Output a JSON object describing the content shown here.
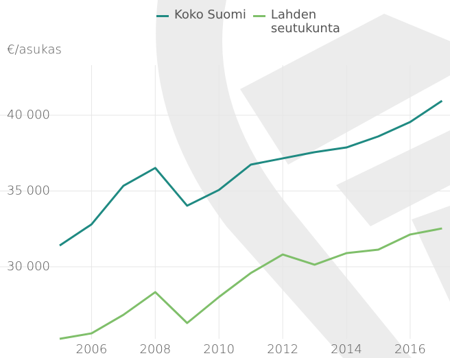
{
  "chart_data": {
    "type": "line",
    "y_axis_label": "€/asukas",
    "x": [
      2005,
      2006,
      2007,
      2008,
      2009,
      2010,
      2011,
      2012,
      2013,
      2014,
      2015,
      2016,
      2017
    ],
    "series": [
      {
        "name": "Koko Suomi",
        "color": "#1f8a82",
        "values": [
          31400,
          32800,
          35340,
          36520,
          34030,
          35070,
          36740,
          37150,
          37560,
          37870,
          38600,
          39550,
          40950
        ]
      },
      {
        "name": "Lahden seutukunta",
        "color": "#7fbf6a",
        "values": [
          25250,
          25610,
          26830,
          28330,
          26290,
          28010,
          29590,
          30810,
          30140,
          30900,
          31130,
          32130,
          32530
        ]
      }
    ],
    "xlim": [
      2005,
      2017.25
    ],
    "xticks": [
      2006,
      2008,
      2010,
      2012,
      2014,
      2016
    ],
    "ylim": [
      25250,
      43300
    ],
    "yticks": [
      {
        "value": 30000,
        "label": "30 000"
      },
      {
        "value": 35000,
        "label": "35 000"
      },
      {
        "value": 40000,
        "label": "40 000"
      }
    ],
    "grid": true
  }
}
